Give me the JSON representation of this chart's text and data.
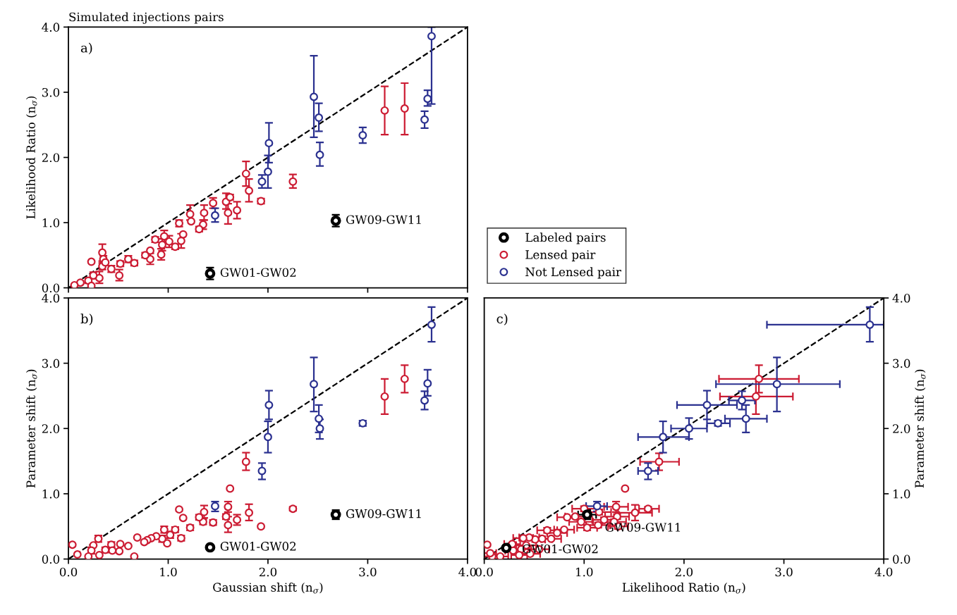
{
  "chart_data": [
    {
      "type": "scatter",
      "title": "Simulated injections pairs",
      "ylabel": "Likelihood Ratio (n$_{σ}$)",
      "xlim": [
        0,
        4
      ],
      "ylim": [
        0,
        4
      ],
      "xticks": [
        {
          "value": 0,
          "label": null
        },
        {
          "value": 1,
          "label": null
        },
        {
          "value": 2,
          "label": null
        },
        {
          "value": 3,
          "label": null
        },
        {
          "value": 4,
          "label": null
        }
      ],
      "yticks": [
        {
          "value": 0,
          "label": "0.0"
        },
        {
          "value": 1,
          "label": "1.0"
        },
        {
          "value": 2,
          "label": "2.0"
        },
        {
          "value": 3,
          "label": "3.0"
        },
        {
          "value": 4,
          "label": "4.0"
        }
      ],
      "tick_labels": "y",
      "marker": "circle",
      "legend": "right",
      "annotations": [
        "a)",
        {
          "text": "GW01-GW02",
          "x": 1.42,
          "y": 0.22
        },
        {
          "text": "GW09-GW11",
          "x": 2.68,
          "y": 1.03
        }
      ],
      "series": [
        {
          "type": "line",
          "marker": "none",
          "color": "#000000",
          "line_style": "dashed",
          "x": [
            0,
            4
          ],
          "values": [
            0,
            4
          ]
        },
        {
          "name": "Lensed pair",
          "color": "#cc1c33",
          "x": [
            3.17,
            3.37,
            2.25,
            1.78,
            1.81,
            1.93,
            1.45,
            1.58,
            1.62,
            1.6,
            1.69,
            1.36,
            1.35,
            1.22,
            1.23,
            1.31,
            1.11,
            1.15,
            1.13,
            1.07,
            1.01,
            0.96,
            0.94,
            0.93,
            0.87,
            0.82,
            0.82,
            0.77,
            0.66,
            0.6,
            0.52,
            0.51,
            0.43,
            0.34,
            0.23,
            0.35,
            0.34,
            0.37,
            0.31,
            0.25,
            0.2,
            0.12,
            0.06,
            0.23
          ],
          "values": [
            2.72,
            2.75,
            1.63,
            1.75,
            1.49,
            1.33,
            1.3,
            1.32,
            1.39,
            1.15,
            1.19,
            1.15,
            0.97,
            1.13,
            1.02,
            0.9,
            0.99,
            0.82,
            0.72,
            0.63,
            0.71,
            0.79,
            0.66,
            0.51,
            0.74,
            0.57,
            0.44,
            0.5,
            0.38,
            0.44,
            0.37,
            0.19,
            0.29,
            0.54,
            0.4,
            0.44,
            0.33,
            0.39,
            0.15,
            0.19,
            0.11,
            0.08,
            0.04,
            0.03
          ],
          "errors": [
            0.37,
            [
              2.35,
              3.14
            ],
            [
              1.53,
              1.74
            ],
            0.19,
            [
              1.32,
              1.67
            ],
            0.04,
            0.08,
            [
              1.21,
              1.45
            ],
            0.04,
            [
              0.98,
              1.29
            ],
            0.13,
            [
              1.04,
              1.27
            ],
            0.07,
            [
              1.04,
              1.27
            ],
            null,
            0.04,
            0.05,
            null,
            0.11,
            0.04,
            0.09,
            0.09,
            0.09,
            [
              0.43,
              0.6
            ],
            0.04,
            null,
            [
              0.36,
              0.53
            ],
            0.04,
            0.04,
            0.05,
            0.04,
            [
              0.11,
              0.28
            ],
            0.05,
            0.13,
            null,
            0.05,
            0.05,
            null,
            [
              0.07,
              0.25
            ],
            0.05,
            0.04,
            null,
            null,
            null
          ]
        },
        {
          "name": "Not Lensed pair",
          "color": "#2b3190",
          "x": [
            3.64,
            2.46,
            2.51,
            2.52,
            2.01,
            2.0,
            1.94,
            1.47,
            2.95,
            3.57,
            3.6
          ],
          "values": [
            3.86,
            2.93,
            2.61,
            2.04,
            2.22,
            1.78,
            1.63,
            1.11,
            2.34,
            2.58,
            2.9
          ],
          "errors": [
            [
              2.82,
              4.0
            ],
            [
              2.31,
              3.56
            ],
            [
              2.4,
              2.83
            ],
            [
              1.87,
              2.23
            ],
            [
              1.92,
              2.53
            ],
            0.25,
            0.1,
            [
              1.01,
              1.22
            ],
            0.12,
            0.13,
            [
              2.79,
              3.03
            ]
          ]
        },
        {
          "name": "Labeled pairs",
          "color": "#000000",
          "x": [
            1.42,
            2.68
          ],
          "values": [
            0.22,
            1.03
          ],
          "errors": [
            0.09,
            0.09
          ]
        }
      ]
    },
    {
      "type": "scatter",
      "xlabel": "Gaussian shift (n$_{σ}$)",
      "ylabel": "Parameter shift (n$_{σ}$)",
      "xlim": [
        0,
        4
      ],
      "ylim": [
        0,
        4
      ],
      "xticks": [
        {
          "value": 0,
          "label": "0.0"
        },
        {
          "value": 1,
          "label": "1.0"
        },
        {
          "value": 2,
          "label": "2.0"
        },
        {
          "value": 3,
          "label": "3.0"
        },
        {
          "value": 4,
          "label": "4.0"
        }
      ],
      "yticks": [
        {
          "value": 0,
          "label": "0.0"
        },
        {
          "value": 1,
          "label": "1.0"
        },
        {
          "value": 2,
          "label": "2.0"
        },
        {
          "value": 3,
          "label": "3.0"
        },
        {
          "value": 4,
          "label": "4.0"
        }
      ],
      "marker": "circle",
      "annotations": [
        "b)",
        {
          "text": "GW01-GW02",
          "x": 1.42,
          "y": 0.18
        },
        {
          "text": "GW09-GW11",
          "x": 2.68,
          "y": 0.68
        }
      ],
      "series": [
        {
          "type": "line",
          "marker": "none",
          "color": "#000000",
          "line_style": "dashed",
          "x": [
            0,
            4
          ],
          "values": [
            0,
            4
          ]
        },
        {
          "color": "#cc1c33",
          "x": [
            3.17,
            3.37,
            1.78,
            1.62,
            2.25,
            1.81,
            1.93,
            1.6,
            1.6,
            1.58,
            1.69,
            1.45,
            1.36,
            1.35,
            1.31,
            1.22,
            1.11,
            1.15,
            1.13,
            1.07,
            1.02,
            0.99,
            0.96,
            0.94,
            0.88,
            0.83,
            0.79,
            0.76,
            0.69,
            0.66,
            0.6,
            0.52,
            0.51,
            0.43,
            0.44,
            0.37,
            0.3,
            0.25,
            0.23,
            0.31,
            0.04,
            0.09,
            0.2
          ],
          "values": [
            2.49,
            2.76,
            1.49,
            1.08,
            0.77,
            0.71,
            0.5,
            0.8,
            0.52,
            0.65,
            0.6,
            0.56,
            0.72,
            0.57,
            0.64,
            0.48,
            0.76,
            0.63,
            0.32,
            0.45,
            0.37,
            0.24,
            0.45,
            0.31,
            0.35,
            0.32,
            0.29,
            0.26,
            0.33,
            0.04,
            0.2,
            0.23,
            0.12,
            0.22,
            0.13,
            0.14,
            0.31,
            0.21,
            0.13,
            0.06,
            0.22,
            0.07,
            0.04
          ],
          "errors": [
            0.27,
            0.21,
            [
              1.36,
              1.63
            ],
            null,
            0.03,
            [
              0.59,
              0.84
            ],
            null,
            0.08,
            [
              0.41,
              0.65
            ],
            0.04,
            0.08,
            0.04,
            [
              0.63,
              0.82
            ],
            0.04,
            0.04,
            0.04,
            null,
            null,
            0.04,
            0.04,
            0.05,
            null,
            0.05,
            0.05,
            null,
            null,
            null,
            null,
            null,
            null,
            null,
            null,
            null,
            0.04,
            null,
            0.04,
            0.05,
            null,
            0.05,
            null,
            null,
            null,
            null
          ]
        },
        {
          "color": "#2b3190",
          "x": [
            3.64,
            2.46,
            2.51,
            2.52,
            2.01,
            2.0,
            1.94,
            1.47,
            2.95,
            3.57,
            3.6
          ],
          "values": [
            3.59,
            2.68,
            2.15,
            2.0,
            2.36,
            1.87,
            1.35,
            0.81,
            2.08,
            2.43,
            2.69
          ],
          "errors": [
            [
              3.33,
              3.86
            ],
            [
              2.26,
              3.09
            ],
            0.21,
            [
              1.84,
              2.14
            ],
            0.22,
            0.24,
            [
              1.22,
              1.47
            ],
            [
              0.73,
              0.88
            ],
            0.04,
            0.14,
            [
              2.5,
              2.9
            ]
          ]
        },
        {
          "color": "#000000",
          "x": [
            1.42,
            2.68
          ],
          "values": [
            0.18,
            0.68
          ],
          "errors": [
            null,
            0.07
          ]
        }
      ]
    },
    {
      "type": "scatter",
      "xlabel": "Likelihood Ratio (n$_{σ}$)",
      "ylabel": "Parameter shift (n$_{σ}$)",
      "xlim": [
        0,
        4
      ],
      "ylim": [
        0,
        4
      ],
      "xticks": [
        {
          "value": 0,
          "label": "0.0"
        },
        {
          "value": 1,
          "label": "1.0"
        },
        {
          "value": 2,
          "label": "2.0"
        },
        {
          "value": 3,
          "label": "3.0"
        },
        {
          "value": 4,
          "label": "4.0"
        }
      ],
      "yticks": [
        {
          "value": 0,
          "label": "0.0"
        },
        {
          "value": 1,
          "label": "1.0"
        },
        {
          "value": 2,
          "label": "2.0"
        },
        {
          "value": 3,
          "label": "3.0"
        },
        {
          "value": 4,
          "label": "4.0"
        }
      ],
      "marker": "circle",
      "annotations": [
        "c)",
        {
          "text": "GW01-GW02",
          "x": 0.22,
          "y": 0.17
        },
        {
          "text": "GW09-GW11",
          "x": 1.03,
          "y": 0.68
        }
      ],
      "series": [
        {
          "type": "line",
          "marker": "none",
          "color": "#000000",
          "line_style": "dashed",
          "x": [
            0,
            4
          ],
          "values": [
            0,
            4
          ]
        },
        {
          "color": "#cc1c33",
          "x": [
            2.75,
            2.72,
            1.75,
            1.41,
            1.64,
            1.51,
            1.32,
            1.33,
            1.34,
            1.3,
            1.2,
            1.15,
            1.14,
            1.03,
            1.0,
            0.97,
            0.91,
            0.83,
            0.8,
            0.73,
            0.67,
            0.63,
            0.58,
            0.51,
            0.45,
            0.39,
            0.42,
            0.37,
            0.46,
            0.55,
            0.29,
            0.35,
            0.28,
            0.16,
            0.08,
            0.03,
            0.06
          ],
          "values": [
            2.76,
            2.49,
            1.49,
            1.08,
            0.77,
            0.71,
            0.8,
            0.65,
            0.5,
            0.57,
            0.6,
            0.72,
            0.52,
            0.48,
            0.77,
            0.57,
            0.65,
            0.64,
            0.45,
            0.4,
            0.31,
            0.44,
            0.31,
            0.3,
            0.33,
            0.32,
            0.21,
            0.15,
            0.08,
            0.15,
            0.13,
            0.06,
            0.23,
            0.04,
            0.04,
            0.22,
            0.09
          ],
          "errors": [
            0.21,
            0.27,
            0.13,
            null,
            0.03,
            0.12,
            0.08,
            0.04,
            0.04,
            0.04,
            0.04,
            0.04,
            0.04,
            0.04,
            0.04,
            null,
            null,
            null,
            null,
            null,
            null,
            0.04,
            null,
            null,
            null,
            null,
            null,
            null,
            null,
            null,
            null,
            null,
            null,
            null,
            null,
            null,
            null
          ],
          "xerrors": [
            0.4,
            [
              2.36,
              3.09
            ],
            [
              1.56,
              1.95
            ],
            null,
            [
              1.55,
              1.75
            ],
            0.17,
            0.12,
            0.12,
            0.1,
            0.12,
            0.12,
            0.12,
            0.12,
            0.1,
            0.12,
            0.12,
            0.1,
            0.1,
            0.1,
            0.1,
            0.1,
            0.1,
            0.1,
            0.1,
            0.1,
            0.1,
            0.1,
            0.1,
            0.1,
            0.1,
            0.08,
            0.08,
            0.08,
            0.08,
            0.08,
            null,
            0.06
          ]
        },
        {
          "color": "#2b3190",
          "x": [
            3.86,
            2.93,
            2.58,
            2.23,
            2.62,
            2.05,
            2.34,
            1.79,
            1.64,
            1.13
          ],
          "values": [
            3.59,
            2.68,
            2.43,
            2.36,
            2.15,
            2.0,
            2.08,
            1.87,
            1.35,
            0.81
          ],
          "errors": [
            [
              3.33,
              3.86
            ],
            [
              2.26,
              3.09
            ],
            0.14,
            0.22,
            0.21,
            0.16,
            0.04,
            0.24,
            [
              1.22,
              1.47
            ],
            [
              0.73,
              0.88
            ]
          ],
          "xerrors": [
            [
              2.83,
              4.0
            ],
            [
              2.32,
              3.56
            ],
            0.13,
            0.3,
            0.21,
            0.18,
            [
              2.23,
              2.46
            ],
            [
              1.54,
              2.05
            ],
            0.1,
            [
              1.02,
              1.23
            ]
          ]
        },
        {
          "color": "#000000",
          "x": [
            0.22,
            1.03
          ],
          "values": [
            0.17,
            0.68
          ],
          "errors": [
            null,
            0.07
          ],
          "xerrors": [
            null,
            0.09
          ]
        }
      ]
    }
  ]
}
